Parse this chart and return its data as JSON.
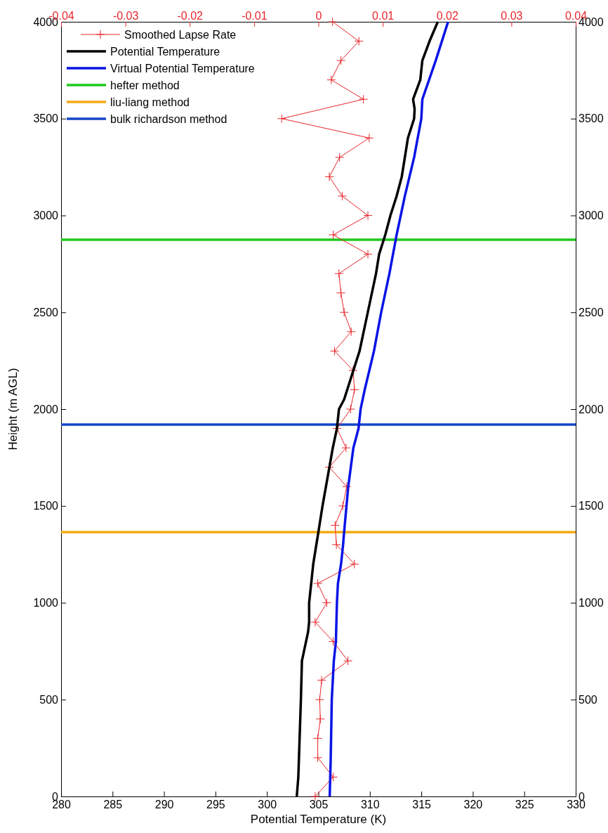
{
  "chart_data": {
    "type": "line",
    "xlabel": "Potential Temperature (K)",
    "ylabel": "Height (m AGL)",
    "xlim": [
      280,
      330
    ],
    "xticks": [
      280,
      285,
      290,
      295,
      300,
      305,
      310,
      315,
      320,
      325,
      330
    ],
    "x2lim": [
      -0.04,
      0.04
    ],
    "x2ticks": [
      -0.04,
      -0.03,
      -0.02,
      -0.01,
      0,
      0.01,
      0.02,
      0.03,
      0.04
    ],
    "ylim": [
      0,
      4000
    ],
    "yticks": [
      0,
      500,
      1000,
      1500,
      2000,
      2500,
      3000,
      3500,
      4000
    ],
    "y2lim": [
      0,
      4000
    ],
    "y2ticks": [
      0,
      500,
      1000,
      1500,
      2000,
      2500,
      3000,
      3500,
      4000
    ],
    "grid": false,
    "legend": "top left",
    "series": [
      {
        "name": "Smoothed Lapse Rate",
        "color": "#e8262c",
        "axis": "x2",
        "marker": "cross",
        "x": [
          -0.0005,
          0.0023,
          -0.0001,
          -0.0001,
          0.0003,
          0.0002,
          0.0005,
          0.0046,
          0.0023,
          -0.0005,
          0.0013,
          -0.0001,
          0.0056,
          0.0028,
          0.0026,
          0.0038,
          0.0044,
          0.0017,
          0.0043,
          0.0029,
          0.005,
          0.0056,
          0.0054,
          0.0025,
          0.0051,
          0.004,
          0.0035,
          0.0032,
          0.0077,
          0.0023,
          0.0077,
          0.0037,
          0.0017,
          0.0033,
          0.0079,
          -0.0057,
          0.007,
          0.002,
          0.0035,
          0.0063,
          0.0022
        ],
        "values": [
          0,
          100,
          200,
          300,
          400,
          500,
          600,
          700,
          800,
          900,
          1000,
          1100,
          1200,
          1300,
          1400,
          1500,
          1600,
          1700,
          1800,
          1900,
          2000,
          2100,
          2200,
          2300,
          2400,
          2500,
          2600,
          2700,
          2800,
          2900,
          3000,
          3100,
          3200,
          3300,
          3400,
          3500,
          3600,
          3700,
          3800,
          3900,
          4000
        ]
      },
      {
        "name": "Potential Temperature",
        "color": "#000000",
        "marker": "none",
        "x": [
          302.9,
          303.05,
          303.3,
          303.4,
          303.6,
          304.0,
          304.1,
          304.1,
          304.3,
          304.5,
          304.8,
          305.0,
          305.4,
          306.4,
          306.8,
          307.0,
          307.5,
          307.8,
          308.4,
          309.0,
          309.8,
          310.6,
          310.9,
          311.5,
          312.0,
          312.6,
          313.1,
          313.4,
          313.7,
          314.3,
          314.35,
          314.2,
          314.9,
          315.1,
          315.8,
          316.6
        ],
        "values": [
          0,
          100,
          500,
          700,
          750,
          850,
          900,
          1000,
          1100,
          1200,
          1300,
          1365,
          1500,
          1800,
          1900,
          2000,
          2050,
          2100,
          2200,
          2300,
          2500,
          2700,
          2800,
          2900,
          3000,
          3100,
          3200,
          3300,
          3400,
          3500,
          3550,
          3600,
          3700,
          3800,
          3900,
          4000
        ]
      },
      {
        "name": "Virtual Potential Temperature",
        "color": "#0a14e6",
        "marker": "none",
        "x": [
          306.1,
          306.2,
          306.3,
          306.4,
          306.5,
          306.7,
          306.8,
          306.9,
          307.2,
          307.4,
          307.5,
          307.9,
          308.4,
          308.9,
          309.1,
          309.5,
          310.4,
          311.1,
          311.9,
          312.6,
          313.4,
          314.3,
          315.0,
          315.1,
          316.4,
          317.6
        ],
        "values": [
          0,
          200,
          500,
          600,
          700,
          800,
          1000,
          1100,
          1200,
          1300,
          1365,
          1600,
          1800,
          1900,
          2000,
          2100,
          2300,
          2500,
          2700,
          2900,
          3100,
          3300,
          3500,
          3600,
          3800,
          4000
        ]
      }
    ],
    "ref_lines": [
      {
        "axis": "y",
        "value": 2875,
        "label": "hefter method",
        "color": "#1ec81e"
      },
      {
        "axis": "y",
        "value": 1365,
        "label": "liu-liang method",
        "color": "#f5aa14"
      },
      {
        "axis": "y",
        "value": 1920,
        "label": "bulk richardson method",
        "color": "#1446c8"
      }
    ]
  }
}
